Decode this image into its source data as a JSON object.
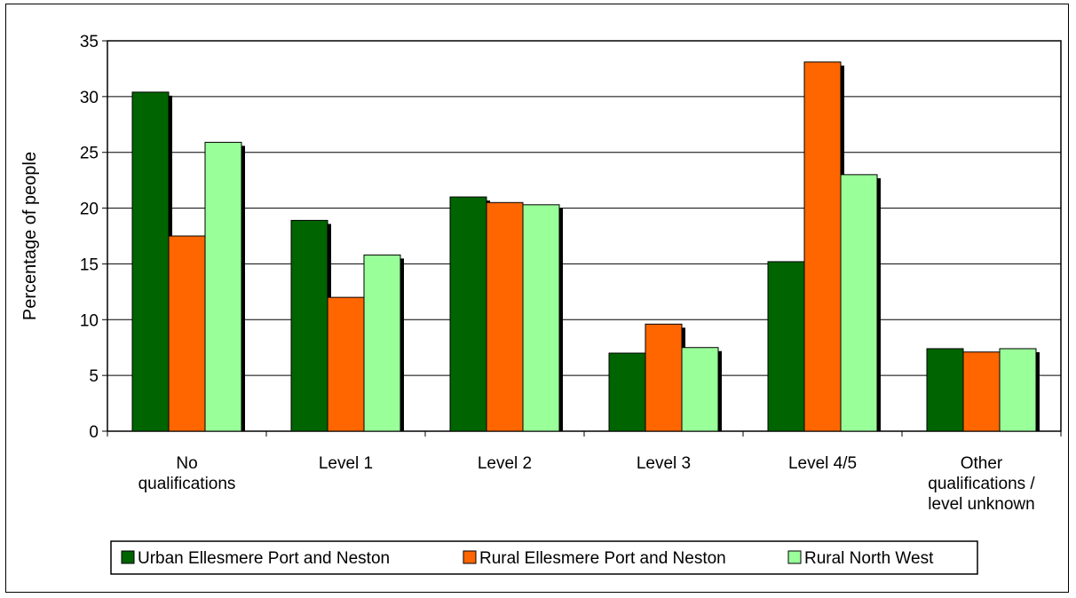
{
  "chart_data": {
    "type": "bar",
    "title": "",
    "xlabel": "",
    "ylabel": "Percentage of people",
    "ylim": [
      0,
      35
    ],
    "yticks": [
      0,
      5,
      10,
      15,
      20,
      25,
      30,
      35
    ],
    "grid": true,
    "legend_position": "bottom",
    "categories": [
      [
        "No",
        "qualifications"
      ],
      [
        "Level 1"
      ],
      [
        "Level 2"
      ],
      [
        "Level 3"
      ],
      [
        "Level 4/5"
      ],
      [
        "Other",
        "qualifications /",
        "level unknown"
      ]
    ],
    "series": [
      {
        "name": "Urban Ellesmere Port and Neston",
        "color": "#006400",
        "values": [
          30.4,
          18.9,
          21.0,
          7.0,
          15.2,
          7.4
        ]
      },
      {
        "name": "Rural Ellesmere Port and Neston",
        "color": "#ff6600",
        "values": [
          17.5,
          12.0,
          20.5,
          9.6,
          33.1,
          7.1
        ]
      },
      {
        "name": "Rural North West",
        "color": "#99ff99",
        "values": [
          25.9,
          15.8,
          20.3,
          7.5,
          23.0,
          7.4
        ]
      }
    ]
  }
}
